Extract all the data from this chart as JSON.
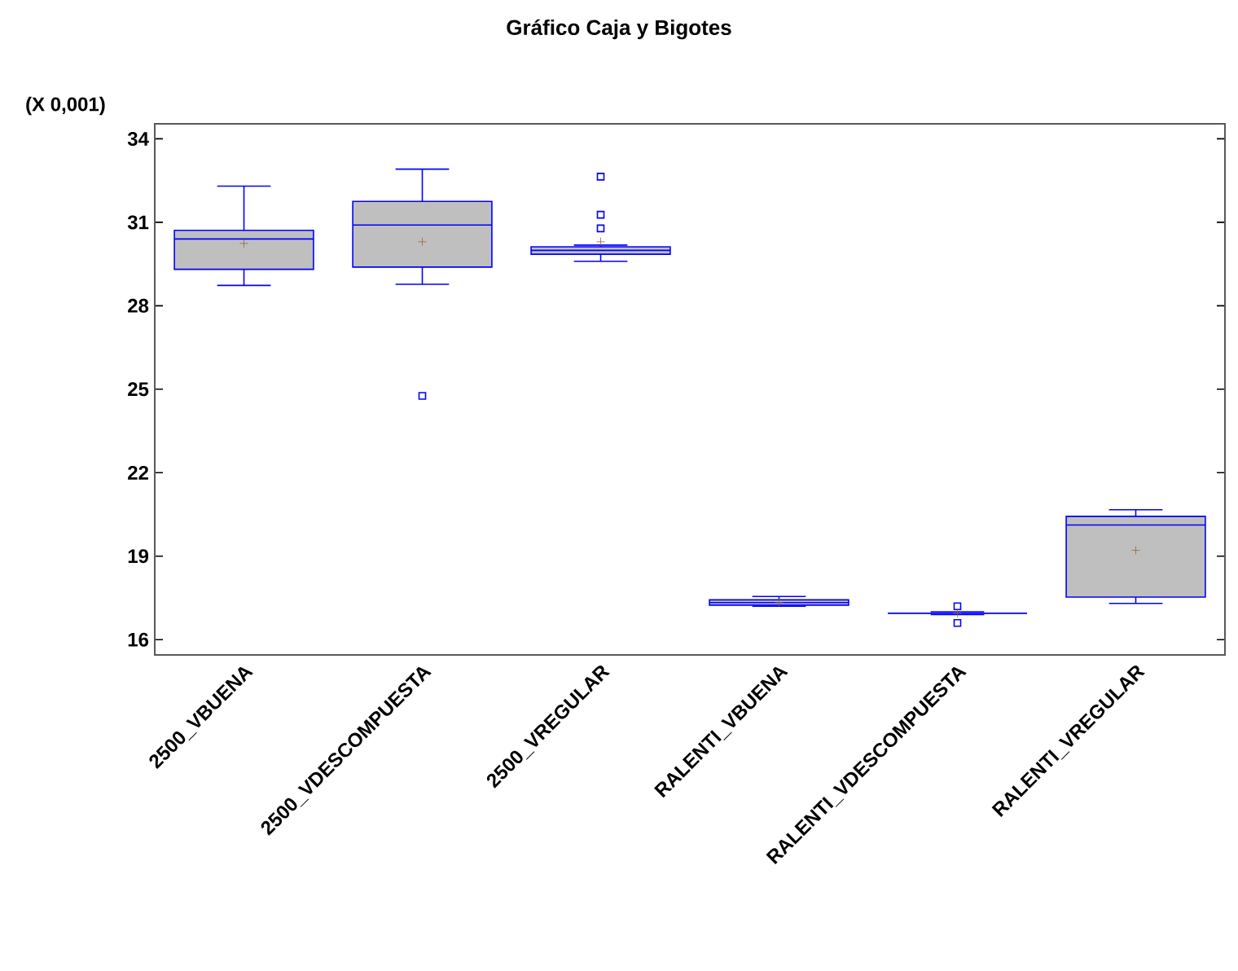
{
  "chart_data": {
    "type": "box",
    "title": "Gráfico Caja y Bigotes",
    "annotations": [
      "(X 0,001)"
    ],
    "categories": [
      "2500_VBUENA",
      "2500_VDESCOMPUESTA",
      "2500_VREGULAR",
      "RALENTI_VBUENA",
      "RALENTI_VDESCOMPUESTA",
      "RALENTI_VREGULAR"
    ],
    "series": [
      {
        "color": "#0000ff",
        "boxes": [
          {
            "low": 28.73,
            "q1": 29.31,
            "median": 30.4,
            "q3": 30.71,
            "high": 32.3,
            "mean": 30.24
          },
          {
            "low": 28.77,
            "q1": 29.39,
            "median": 30.9,
            "q3": 31.75,
            "high": 32.91,
            "mean": 30.3,
            "outliers": [
              24.76
            ]
          },
          {
            "low": 29.6,
            "q1": 29.85,
            "median": 29.99,
            "q3": 30.12,
            "high": 30.18,
            "mean": 30.3,
            "outliers": [
              32.64,
              31.27,
              30.78
            ]
          },
          {
            "low": 17.2,
            "q1": 17.24,
            "median": 17.33,
            "q3": 17.43,
            "high": 17.55,
            "mean": 17.33
          },
          {
            "low": 16.9,
            "q1": 16.95,
            "median": 16.95,
            "q3": 16.95,
            "high": 17.0,
            "mean": 16.95,
            "outliers": [
              17.2,
              16.6
            ]
          },
          {
            "low": 17.3,
            "q1": 17.53,
            "median": 20.12,
            "q3": 20.43,
            "high": 20.67,
            "mean": 19.21
          }
        ]
      }
    ],
    "ylim": [
      15.45,
      34.54
    ],
    "yticks": [
      16,
      19,
      22,
      25,
      28,
      31,
      34
    ]
  }
}
